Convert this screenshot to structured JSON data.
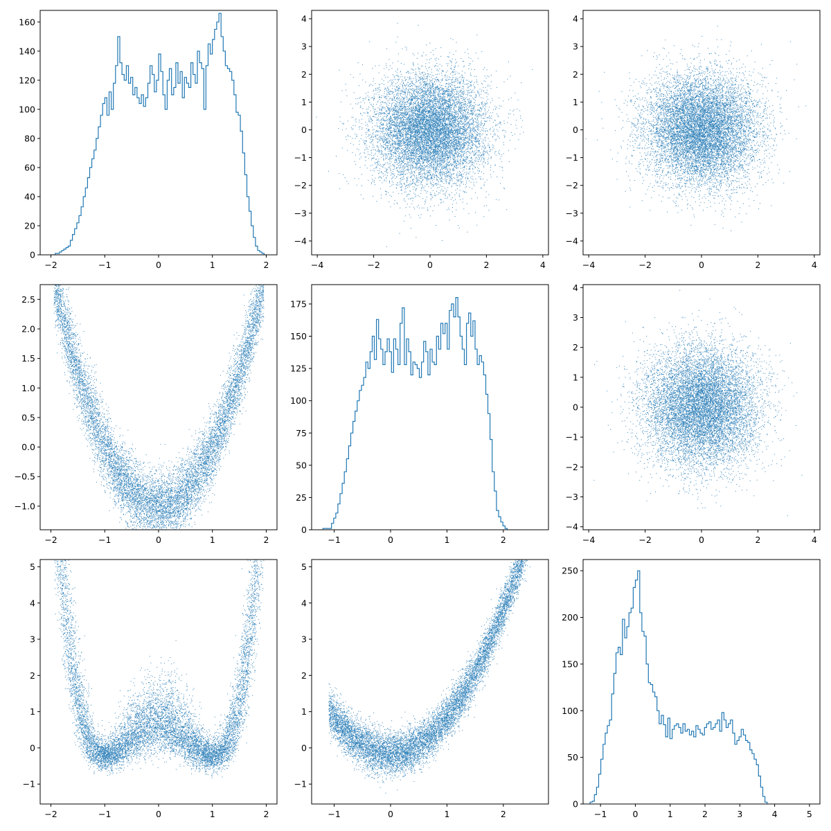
{
  "figure": {
    "type": "pairplot-grid",
    "rows": 3,
    "cols": 3,
    "color": "#1f77b4"
  },
  "chart_data": [
    {
      "panel": "r1c1",
      "type": "histogram",
      "hist_style": "step",
      "xlim": [
        -2.2,
        2.2
      ],
      "ylim": [
        0,
        168
      ],
      "xticks": [
        -2,
        -1,
        0,
        1,
        2
      ],
      "yticks": [
        0,
        20,
        40,
        60,
        80,
        100,
        120,
        140,
        160
      ],
      "bin_start": -2.0,
      "bin_width": 0.04,
      "counts": [
        0,
        0,
        1,
        1,
        2,
        3,
        4,
        5,
        6,
        10,
        14,
        18,
        22,
        27,
        33,
        40,
        46,
        53,
        60,
        66,
        72,
        80,
        88,
        96,
        104,
        108,
        96,
        112,
        100,
        118,
        130,
        150,
        132,
        124,
        120,
        130,
        118,
        122,
        110,
        115,
        108,
        104,
        110,
        102,
        108,
        118,
        130,
        124,
        112,
        120,
        138,
        126,
        110,
        100,
        120,
        128,
        110,
        115,
        132,
        118,
        126,
        108,
        122,
        118,
        115,
        132,
        124,
        118,
        140,
        132,
        128,
        100,
        130,
        145,
        138,
        148,
        155,
        160,
        166,
        150,
        140,
        130,
        128,
        126,
        120,
        110,
        98,
        96,
        85,
        70,
        55,
        40,
        30,
        20,
        12,
        6,
        3,
        2,
        1,
        0
      ]
    },
    {
      "panel": "r1c2",
      "type": "scatter",
      "xlim": [
        -4.2,
        4.2
      ],
      "ylim": [
        -4.5,
        4.3
      ],
      "xticks": [
        -4,
        -2,
        0,
        2,
        4
      ],
      "yticks": [
        -4,
        -3,
        -2,
        -1,
        0,
        1,
        2,
        3,
        4
      ],
      "n_points": 10000,
      "x_distribution": {
        "kind": "normal",
        "mean": 0,
        "std": 1
      },
      "y_distribution": {
        "kind": "normal",
        "mean": 0,
        "std": 1
      }
    },
    {
      "panel": "r1c3",
      "type": "scatter",
      "xlim": [
        -4.2,
        4.2
      ],
      "ylim": [
        -4.5,
        4.3
      ],
      "xticks": [
        -4,
        -2,
        0,
        2,
        4
      ],
      "yticks": [
        -4,
        -3,
        -2,
        -1,
        0,
        1,
        2,
        3,
        4
      ],
      "n_points": 10000,
      "x_distribution": {
        "kind": "normal",
        "mean": 0,
        "std": 1
      },
      "y_distribution": {
        "kind": "normal",
        "mean": 0,
        "std": 1
      }
    },
    {
      "panel": "r2c1",
      "type": "scatter",
      "xlim": [
        -2.2,
        2.2
      ],
      "ylim": [
        -1.4,
        2.75
      ],
      "xticks": [
        -2,
        -1,
        0,
        1,
        2
      ],
      "yticks": [
        -1.0,
        -0.5,
        0.0,
        0.5,
        1.0,
        1.5,
        2.0,
        2.5
      ],
      "ytick_labels": [
        "−1.0",
        "−0.5",
        "0.0",
        "0.5",
        "1.0",
        "1.5",
        "2.0",
        "2.5"
      ],
      "n_points": 10000,
      "relation": "y = x^2 - 1 + noise(0.3)",
      "x_distribution": {
        "kind": "uniform-ish",
        "range": [
          -1.95,
          1.95
        ]
      }
    },
    {
      "panel": "r2c2",
      "type": "histogram",
      "hist_style": "step",
      "xlim": [
        -1.4,
        2.8
      ],
      "ylim": [
        0,
        190
      ],
      "xticks": [
        -1,
        0,
        1,
        2
      ],
      "yticks": [
        0,
        25,
        50,
        75,
        100,
        125,
        150,
        175
      ],
      "bin_start": -1.2,
      "bin_width": 0.038,
      "counts": [
        1,
        1,
        1,
        1,
        5,
        9,
        13,
        20,
        28,
        36,
        45,
        55,
        65,
        75,
        84,
        92,
        100,
        108,
        112,
        118,
        130,
        125,
        138,
        150,
        132,
        163,
        148,
        140,
        128,
        138,
        148,
        138,
        122,
        148,
        140,
        128,
        160,
        172,
        128,
        148,
        138,
        120,
        130,
        128,
        125,
        118,
        130,
        146,
        138,
        120,
        140,
        130,
        128,
        150,
        140,
        160,
        152,
        160,
        140,
        170,
        175,
        165,
        180,
        165,
        150,
        140,
        128,
        160,
        168,
        150,
        162,
        140,
        128,
        135,
        130,
        120,
        105,
        90,
        70,
        45,
        30,
        15,
        10,
        6,
        3,
        1
      ]
    },
    {
      "panel": "r2c3",
      "type": "scatter",
      "xlim": [
        -4.2,
        4.2
      ],
      "ylim": [
        -4.1,
        4.1
      ],
      "xticks": [
        -4,
        -2,
        0,
        2,
        4
      ],
      "yticks": [
        -4,
        -3,
        -2,
        -1,
        0,
        1,
        2,
        3,
        4
      ],
      "n_points": 10000,
      "x_distribution": {
        "kind": "normal",
        "mean": 0,
        "std": 1
      },
      "y_distribution": {
        "kind": "normal",
        "mean": 0,
        "std": 1
      }
    },
    {
      "panel": "r3c1",
      "type": "scatter",
      "xlim": [
        -2.2,
        2.2
      ],
      "ylim": [
        -1.55,
        5.2
      ],
      "xticks": [
        -2,
        -1,
        0,
        1,
        2
      ],
      "yticks": [
        -1,
        0,
        1,
        2,
        3,
        4,
        5
      ],
      "n_points": 10000,
      "relation": "y = (x^2 - 1)^2 - 0.3 + noise",
      "x_distribution": {
        "kind": "uniform-ish",
        "range": [
          -1.95,
          1.95
        ]
      }
    },
    {
      "panel": "r3c2",
      "type": "scatter",
      "xlim": [
        -1.4,
        2.8
      ],
      "ylim": [
        -1.55,
        5.2
      ],
      "xticks": [
        -1,
        0,
        1,
        2
      ],
      "yticks": [
        -1,
        0,
        1,
        2,
        3,
        4,
        5
      ],
      "n_points": 10000,
      "relation": "y ≈ x^2 - 0.2 + noise",
      "x_distribution": {
        "kind": "uniform-ish",
        "range": [
          -1.1,
          2.5
        ]
      }
    },
    {
      "panel": "r3c3",
      "type": "histogram",
      "hist_style": "step",
      "xlim": [
        -1.5,
        5.3
      ],
      "ylim": [
        0,
        262
      ],
      "xticks": [
        -1,
        0,
        1,
        2,
        3,
        4,
        5
      ],
      "yticks": [
        0,
        50,
        100,
        150,
        200,
        250
      ],
      "bin_start": -1.3,
      "bin_width": 0.062,
      "counts": [
        2,
        3,
        10,
        18,
        32,
        48,
        64,
        76,
        84,
        90,
        118,
        140,
        162,
        168,
        160,
        198,
        178,
        190,
        205,
        210,
        232,
        240,
        250,
        205,
        185,
        180,
        150,
        130,
        128,
        120,
        115,
        100,
        86,
        95,
        85,
        72,
        92,
        70,
        80,
        84,
        86,
        82,
        76,
        86,
        78,
        80,
        74,
        78,
        72,
        84,
        80,
        76,
        74,
        82,
        86,
        88,
        80,
        82,
        86,
        90,
        78,
        98,
        90,
        82,
        86,
        90,
        76,
        64,
        68,
        72,
        80,
        74,
        68,
        66,
        58,
        54,
        48,
        42,
        30,
        18,
        8,
        2
      ]
    }
  ]
}
